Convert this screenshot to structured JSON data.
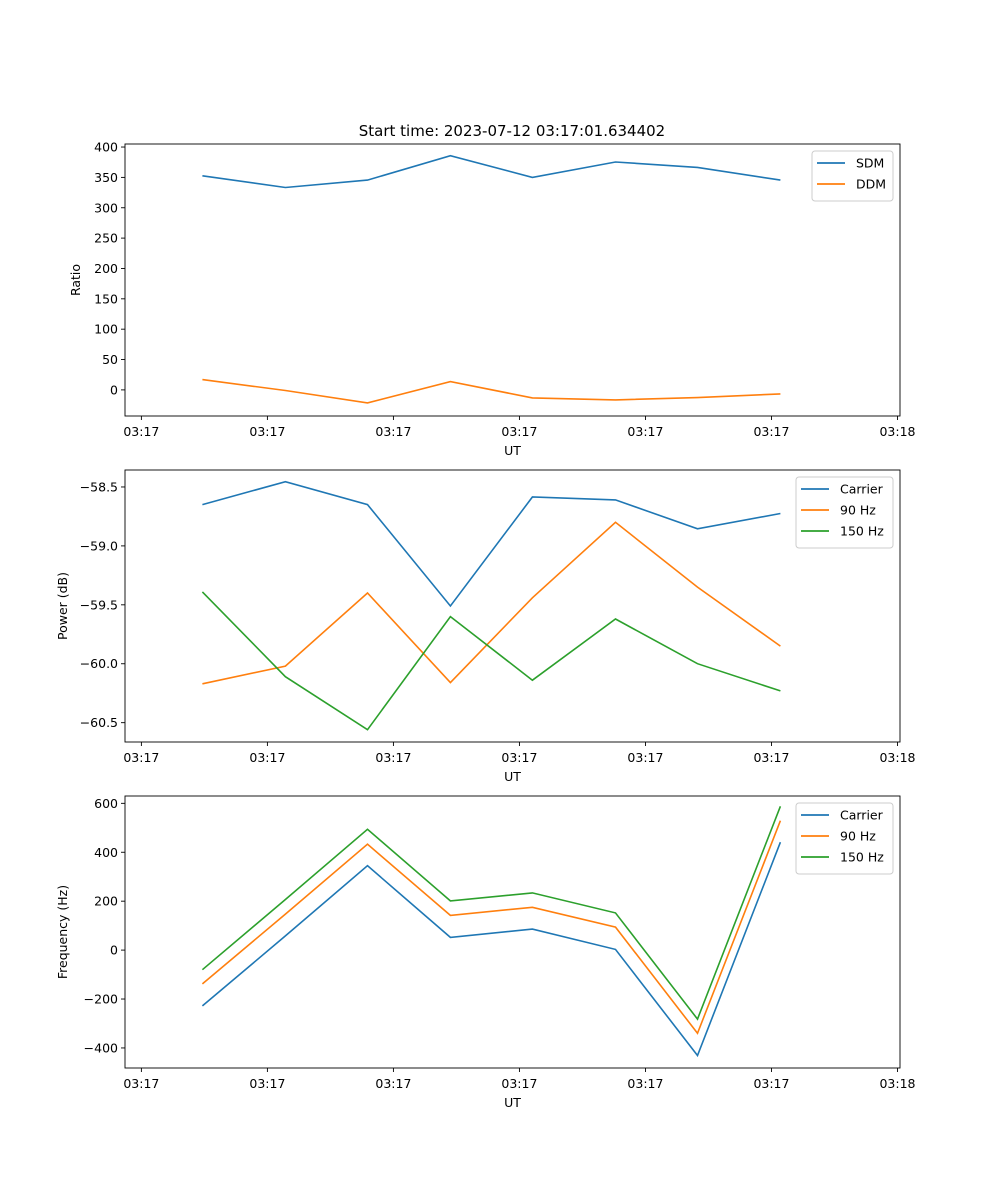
{
  "figure": {
    "title": "Start time: 2023-07-12 03:17:01.634402"
  },
  "chart_data": [
    {
      "type": "line",
      "title": "Start time: 2023-07-12 03:17:01.634402",
      "xlabel": "UT",
      "ylabel": "Ratio",
      "x_unit": "seconds after 03:17:00",
      "x": [
        4.84,
        11.43,
        17.94,
        24.52,
        31.03,
        37.62,
        44.13,
        50.71
      ],
      "xlim": [
        -1.3,
        60.2
      ],
      "x_ticks": [
        0,
        10,
        20,
        30,
        40,
        50,
        60
      ],
      "x_tick_labels": [
        "03:17",
        "03:17",
        "03:17",
        "03:17",
        "03:17",
        "03:17",
        "03:18"
      ],
      "ylim": [
        -43,
        405
      ],
      "y_ticks": [
        0,
        50,
        100,
        150,
        200,
        250,
        300,
        350,
        400
      ],
      "y_tick_labels": [
        "0",
        "50",
        "100",
        "150",
        "200",
        "250",
        "300",
        "350",
        "400"
      ],
      "legend": "top-right",
      "grid": false,
      "series": [
        {
          "name": "SDM",
          "color": "#1f77b4",
          "values": [
            352.7,
            333.4,
            345.6,
            385.7,
            350.0,
            375.3,
            366.4,
            345.6
          ]
        },
        {
          "name": "DDM",
          "color": "#ff7f0e",
          "values": [
            17.0,
            -1.0,
            -21.4,
            13.7,
            -13.2,
            -16.5,
            -12.7,
            -6.6
          ]
        }
      ]
    },
    {
      "type": "line",
      "title": "",
      "xlabel": "UT",
      "ylabel": "Power (dB)",
      "x_unit": "seconds after 03:17:00",
      "x": [
        4.84,
        11.43,
        17.94,
        24.52,
        31.03,
        37.62,
        44.13,
        50.71
      ],
      "xlim": [
        -1.3,
        60.2
      ],
      "x_ticks": [
        0,
        10,
        20,
        30,
        40,
        50,
        60
      ],
      "x_tick_labels": [
        "03:17",
        "03:17",
        "03:17",
        "03:17",
        "03:17",
        "03:17",
        "03:18"
      ],
      "ylim": [
        -60.664,
        -58.356
      ],
      "y_ticks": [
        -60.5,
        -60.0,
        -59.5,
        -59.0,
        -58.5
      ],
      "y_tick_labels": [
        "−60.5",
        "−60.0",
        "−59.5",
        "−59.0",
        "−58.5"
      ],
      "legend": "top-right",
      "grid": false,
      "series": [
        {
          "name": "Carrier",
          "color": "#1f77b4",
          "values": [
            -58.65,
            -58.455,
            -58.65,
            -59.51,
            -58.585,
            -58.61,
            -58.855,
            -58.725
          ]
        },
        {
          "name": "90 Hz",
          "color": "#ff7f0e",
          "values": [
            -60.17,
            -60.02,
            -59.4,
            -60.16,
            -59.44,
            -58.8,
            -59.35,
            -59.85
          ]
        },
        {
          "name": "150 Hz",
          "color": "#2ca02c",
          "values": [
            -59.39,
            -60.11,
            -60.56,
            -59.6,
            -60.14,
            -59.62,
            -60.0,
            -60.23
          ]
        }
      ]
    },
    {
      "type": "line",
      "title": "",
      "xlabel": "UT",
      "ylabel": "Frequency (Hz)",
      "x_unit": "seconds after 03:17:00",
      "x": [
        4.84,
        11.43,
        17.94,
        24.52,
        31.03,
        37.62,
        44.13,
        50.71
      ],
      "xlim": [
        -1.3,
        60.2
      ],
      "x_ticks": [
        0,
        10,
        20,
        30,
        40,
        50,
        60
      ],
      "x_tick_labels": [
        "03:17",
        "03:17",
        "03:17",
        "03:17",
        "03:17",
        "03:17",
        "03:18"
      ],
      "ylim": [
        -482,
        630
      ],
      "y_ticks": [
        -400,
        -200,
        0,
        200,
        400,
        600
      ],
      "y_tick_labels": [
        "−400",
        "−200",
        "0",
        "200",
        "400",
        "600"
      ],
      "legend": "top-right",
      "grid": false,
      "series": [
        {
          "name": "Carrier",
          "color": "#1f77b4",
          "values": [
            -228,
            58,
            345,
            52,
            86,
            3,
            -431,
            441
          ]
        },
        {
          "name": "90 Hz",
          "color": "#ff7f0e",
          "values": [
            -138,
            147,
            433,
            142,
            175,
            94,
            -340,
            529
          ]
        },
        {
          "name": "150 Hz",
          "color": "#2ca02c",
          "values": [
            -80,
            207,
            494,
            201,
            234,
            152,
            -282,
            588
          ]
        }
      ]
    }
  ]
}
